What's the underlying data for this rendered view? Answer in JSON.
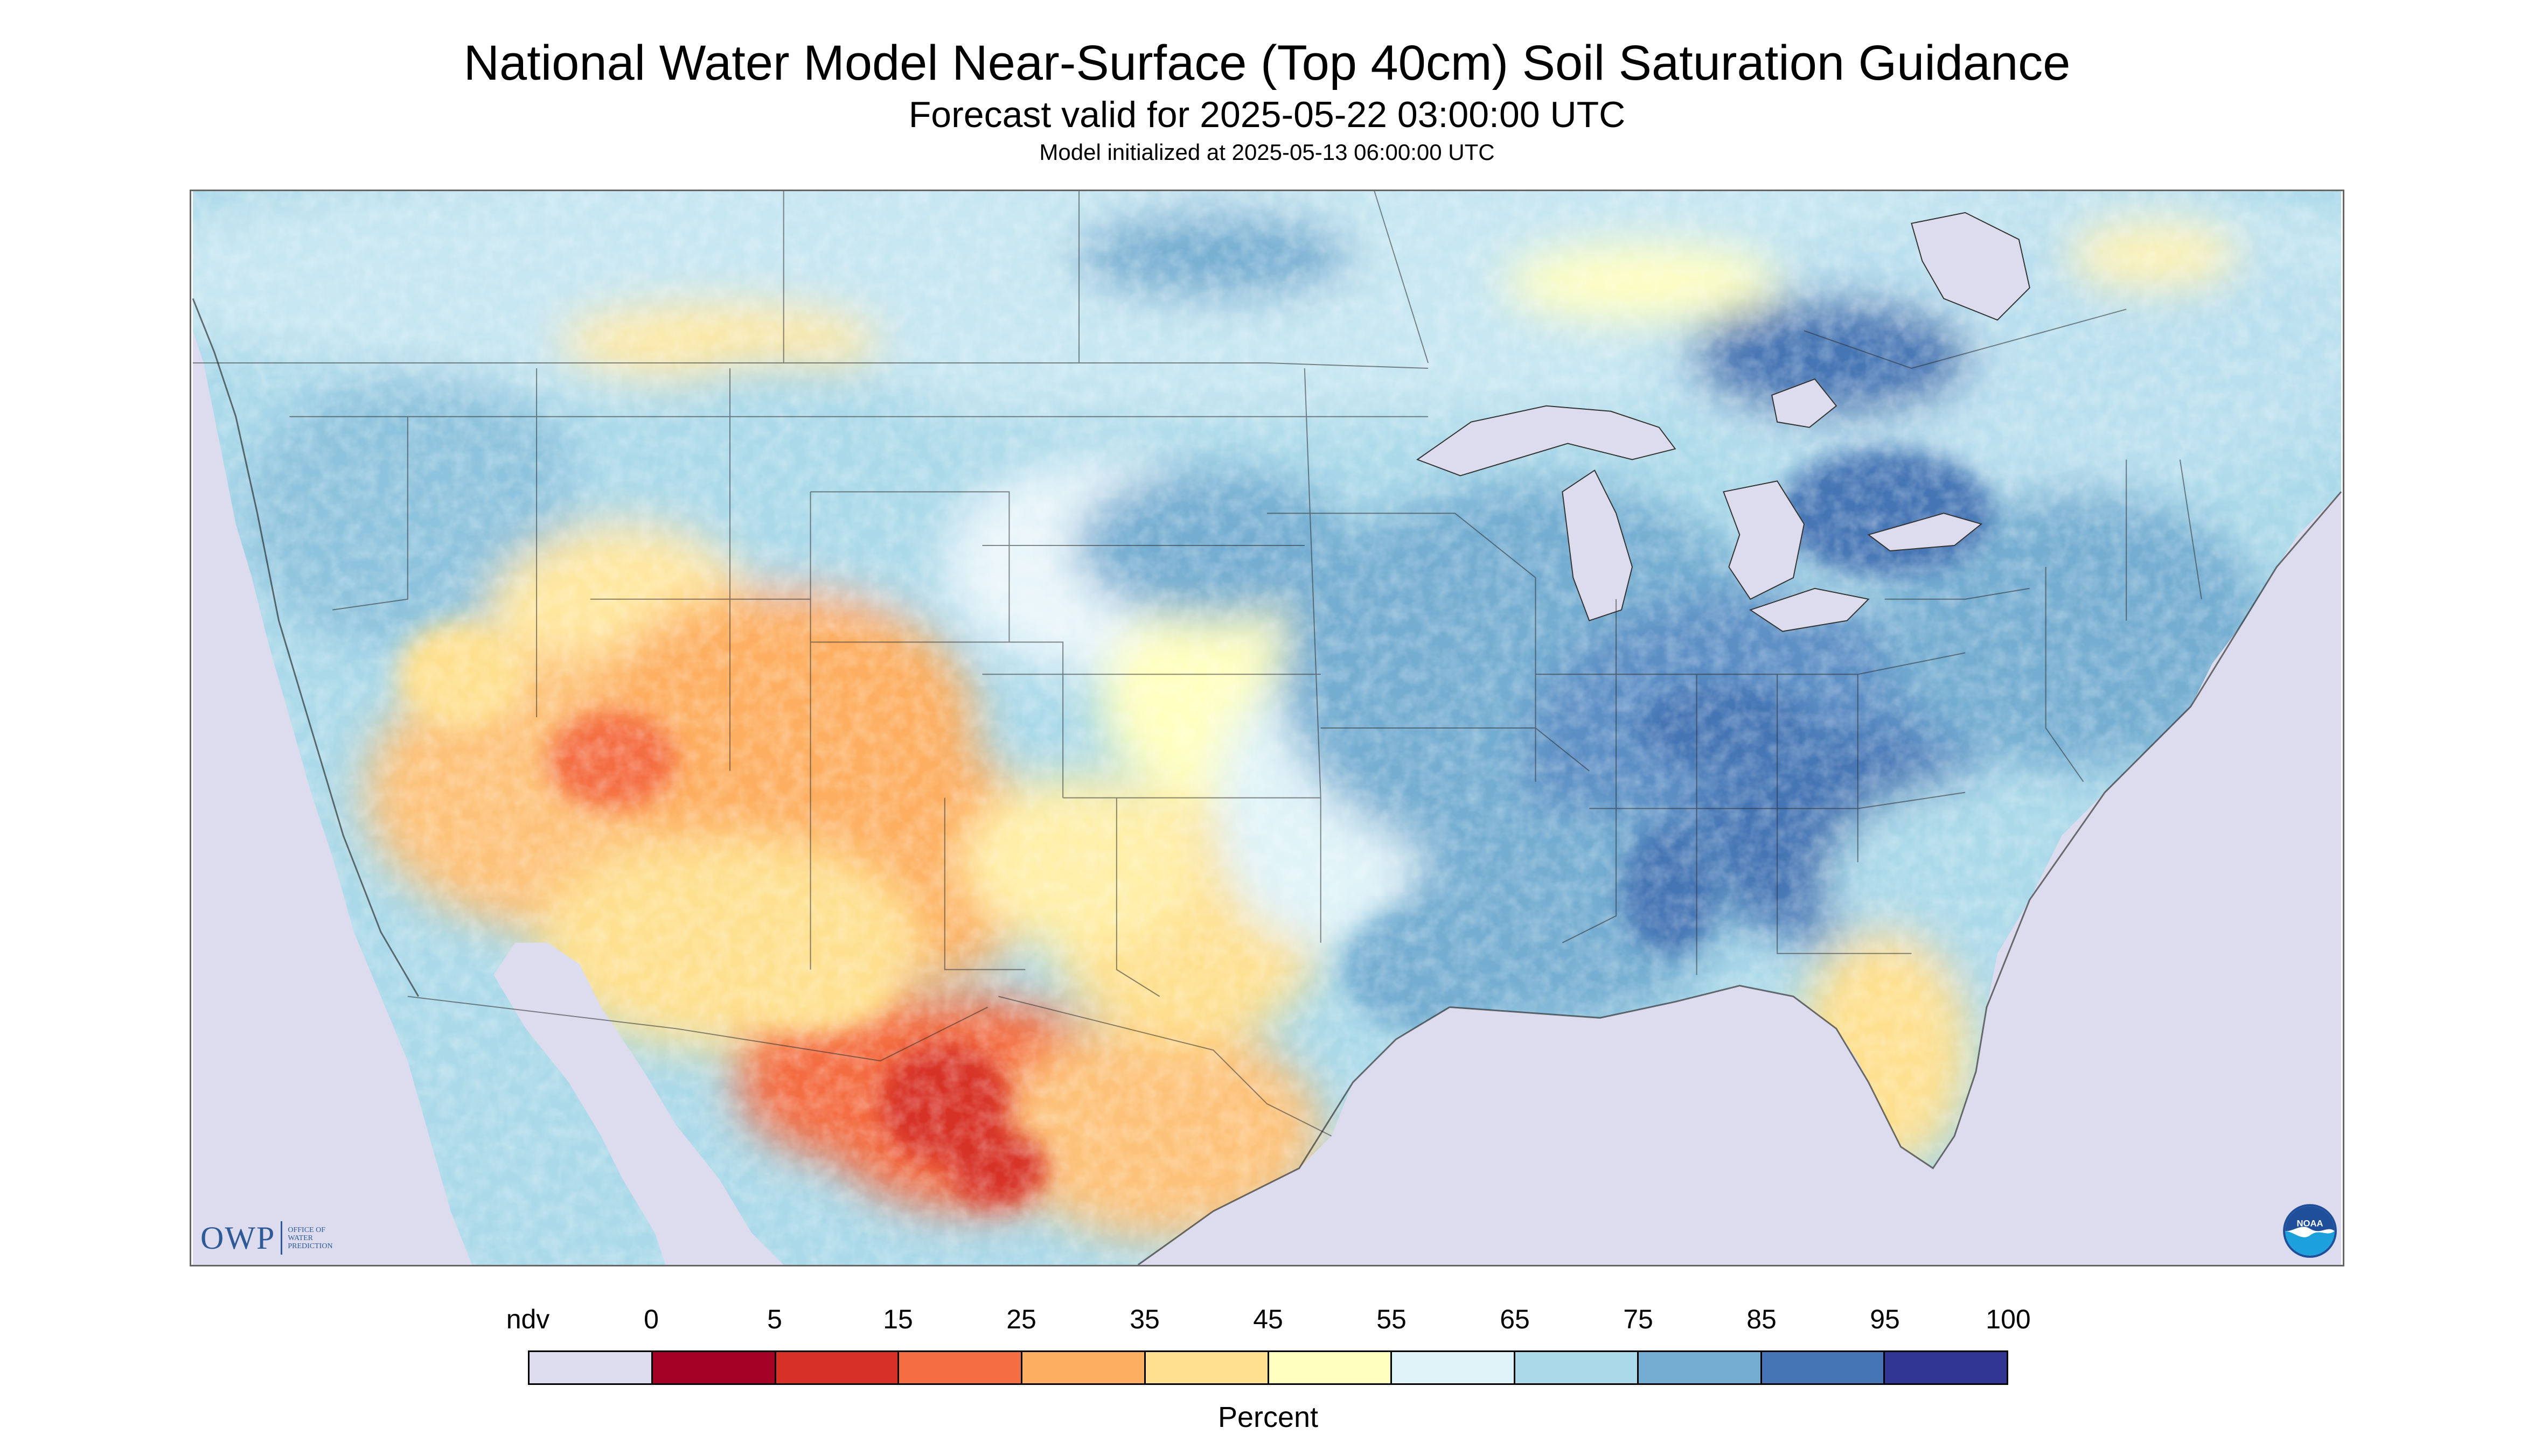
{
  "title": "National Water Model Near-Surface (Top 40cm) Soil Saturation Guidance",
  "subtitle": "Forecast valid for 2025-05-22 03:00:00 UTC",
  "init_line": "Model initialized at 2025-05-13 06:00:00 UTC",
  "logos": {
    "owp_letters": "OWP",
    "owp_lines": [
      "Office of",
      "Water",
      "Prediction"
    ],
    "noaa_text": "NOAA"
  },
  "legend": {
    "unit_label": "Percent",
    "tick_labels": [
      "ndv",
      "0",
      "5",
      "15",
      "25",
      "35",
      "45",
      "55",
      "65",
      "75",
      "85",
      "95",
      "100"
    ],
    "classes": [
      {
        "label": "ndv",
        "color": "#dcdcee"
      },
      {
        "label": "0-5",
        "color": "#a50026"
      },
      {
        "label": "5-15",
        "color": "#d73027"
      },
      {
        "label": "15-25",
        "color": "#f46d43"
      },
      {
        "label": "25-35",
        "color": "#fdae61"
      },
      {
        "label": "35-45",
        "color": "#fee090"
      },
      {
        "label": "45-55",
        "color": "#ffffbf"
      },
      {
        "label": "55-65",
        "color": "#e0f3f8"
      },
      {
        "label": "65-75",
        "color": "#abd9e9"
      },
      {
        "label": "75-85",
        "color": "#74add1"
      },
      {
        "label": "85-95",
        "color": "#4575b4"
      },
      {
        "label": "95-100",
        "color": "#313695"
      }
    ]
  },
  "colors": {
    "no_data": "#dcdcee",
    "map_border": "#666666",
    "logo_blue": "#2e5a97"
  }
}
